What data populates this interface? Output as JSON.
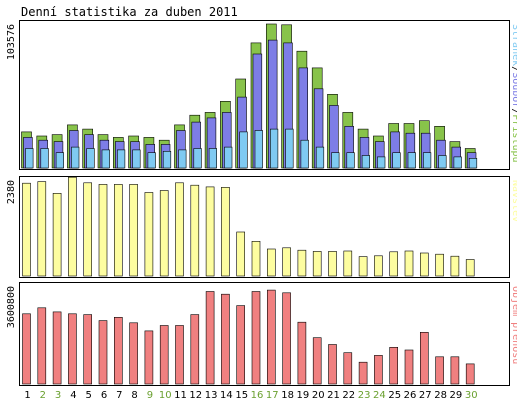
{
  "title": "Denní statistika za duben 2011",
  "colors": {
    "pristupu": "#88c34a",
    "soubory": "#7d7de6",
    "stranky": "#7fcaf2",
    "navstevy": "#fdfda0",
    "prenos": "#f08080",
    "weekend_label": "#6aa02f",
    "weekday_label": "#000000",
    "panel_border": "#000000"
  },
  "chart_data": [
    {
      "type": "bar",
      "name": "hits-files-pages",
      "categories": [
        "1",
        "2",
        "3",
        "4",
        "5",
        "6",
        "7",
        "8",
        "9",
        "10",
        "11",
        "12",
        "13",
        "14",
        "15",
        "16",
        "17",
        "18",
        "19",
        "20",
        "21",
        "22",
        "23",
        "24",
        "25",
        "26",
        "27",
        "28",
        "29",
        "30"
      ],
      "ytick": "103576",
      "ylim": [
        0,
        103576
      ],
      "legend": {
        "placement": "right-vertical",
        "parts": [
          {
            "text": "Stránek",
            "color_key": "stranky"
          },
          {
            "text": "/",
            "color_key": "weekday_label"
          },
          {
            "text": "Soubor",
            "color_key": "soubory"
          },
          {
            "text": "/",
            "color_key": "weekday_label"
          },
          {
            "text": "Přístupů",
            "color_key": "pristupu"
          }
        ]
      },
      "series": [
        {
          "name": "Přístupů",
          "color_key": "pristupu",
          "values": [
            26000,
            23000,
            24000,
            31000,
            28000,
            24000,
            22000,
            23000,
            22000,
            20000,
            31000,
            38000,
            40000,
            48000,
            64000,
            90000,
            103576,
            103000,
            84000,
            72000,
            53000,
            40000,
            28000,
            23000,
            32000,
            32000,
            34000,
            30000,
            19000,
            14000
          ]
        },
        {
          "name": "Soubor",
          "color_key": "soubory",
          "values": [
            22000,
            20000,
            19000,
            27000,
            24000,
            20000,
            19000,
            19000,
            17000,
            17000,
            27000,
            33000,
            36000,
            40000,
            51000,
            82000,
            92000,
            90000,
            72000,
            57000,
            45000,
            30000,
            22000,
            19000,
            26000,
            25000,
            25000,
            20000,
            15000,
            11000
          ]
        },
        {
          "name": "Stránek",
          "color_key": "stranky",
          "values": [
            14000,
            14000,
            11000,
            15000,
            14000,
            13000,
            13000,
            13000,
            11000,
            12000,
            13000,
            14000,
            14000,
            15000,
            26000,
            27000,
            28000,
            28000,
            20000,
            15000,
            11000,
            11000,
            9000,
            8000,
            11000,
            11000,
            11000,
            9000,
            8000,
            7000
          ]
        }
      ]
    },
    {
      "type": "bar",
      "name": "visits",
      "categories": [
        "1",
        "2",
        "3",
        "4",
        "5",
        "6",
        "7",
        "8",
        "9",
        "10",
        "11",
        "12",
        "13",
        "14",
        "15",
        "16",
        "17",
        "18",
        "19",
        "20",
        "21",
        "22",
        "23",
        "24",
        "25",
        "26",
        "27",
        "28",
        "29",
        "30"
      ],
      "ytick": "2380",
      "ylim": [
        0,
        2380
      ],
      "legend": {
        "placement": "right-vertical",
        "parts": [
          {
            "text": "Návštěv",
            "color_key": "navstevy"
          }
        ]
      },
      "series": [
        {
          "name": "Návštěv",
          "color_key": "navstevy",
          "values": [
            2300,
            2340,
            2050,
            2450,
            2310,
            2270,
            2270,
            2270,
            2070,
            2120,
            2310,
            2250,
            2210,
            2200,
            1090,
            860,
            670,
            700,
            640,
            610,
            610,
            620,
            480,
            500,
            600,
            620,
            570,
            540,
            490,
            410
          ]
        }
      ]
    },
    {
      "type": "bar",
      "name": "traffic",
      "categories": [
        "1",
        "2",
        "3",
        "4",
        "5",
        "6",
        "7",
        "8",
        "9",
        "10",
        "11",
        "12",
        "13",
        "14",
        "15",
        "16",
        "17",
        "18",
        "19",
        "20",
        "21",
        "22",
        "23",
        "24",
        "25",
        "26",
        "27",
        "28",
        "29",
        "30"
      ],
      "ytick": "3600800",
      "ylim": [
        0,
        3600800
      ],
      "legend": {
        "placement": "right-vertical",
        "parts": [
          {
            "text": "Objem přenosu",
            "color_key": "prenos"
          }
        ]
      },
      "series": [
        {
          "name": "Objem přenosu",
          "color_key": "prenos",
          "values": [
            2580000,
            2800000,
            2650000,
            2580000,
            2550000,
            2330000,
            2450000,
            2250000,
            1950000,
            2150000,
            2150000,
            2550000,
            3400000,
            3300000,
            2880000,
            3400000,
            3450000,
            3350000,
            2270000,
            1700000,
            1450000,
            1150000,
            800000,
            1050000,
            1350000,
            1250000,
            1900000,
            1000000,
            1000000,
            740000
          ]
        }
      ]
    }
  ],
  "weekend_days": [
    "2",
    "3",
    "9",
    "10",
    "16",
    "17",
    "23",
    "24",
    "30"
  ]
}
